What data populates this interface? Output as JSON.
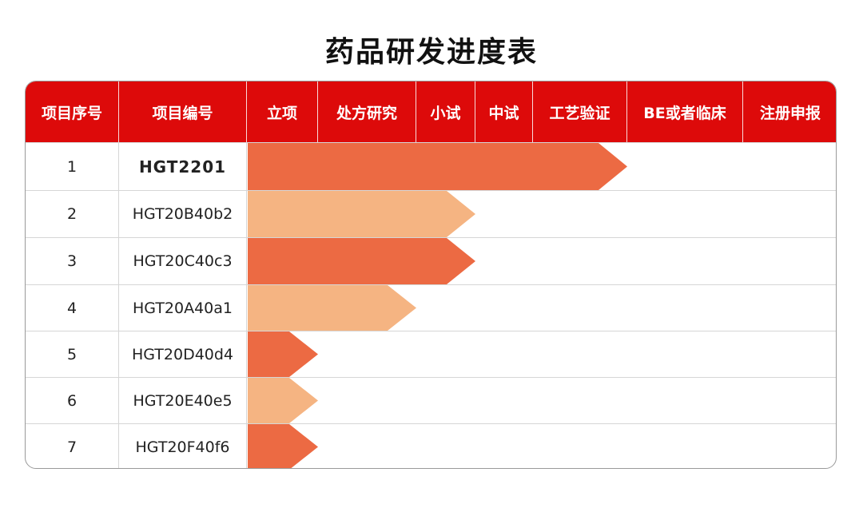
{
  "title": "药品研发进度表",
  "colors": {
    "header": "#dd0a0a",
    "dark_bar": "#ec6a43",
    "light_bar": "#f5b482"
  },
  "columns": [
    {
      "label": "项目序号"
    },
    {
      "label": "项目编号"
    },
    {
      "label": "立项"
    },
    {
      "label": "处方研究"
    },
    {
      "label": "小试"
    },
    {
      "label": "中试"
    },
    {
      "label": "工艺验证"
    },
    {
      "label": "BE或者临床"
    },
    {
      "label": "注册申报"
    }
  ],
  "rows": [
    {
      "index": "1",
      "code": "HGT2201"
    },
    {
      "index": "2",
      "code": "HGT20B40b2"
    },
    {
      "index": "3",
      "code": "HGT20C40c3"
    },
    {
      "index": "4",
      "code": "HGT20A40a1"
    },
    {
      "index": "5",
      "code": "HGT20D40d4"
    },
    {
      "index": "6",
      "code": "HGT20E40e5"
    },
    {
      "index": "7",
      "code": "HGT20F40f6"
    }
  ],
  "chart_data": {
    "type": "bar",
    "orientation": "horizontal",
    "stages": [
      "立项",
      "处方研究",
      "小试",
      "中试",
      "工艺验证",
      "BE或者临床",
      "注册申报"
    ],
    "categories": [
      "HGT2201",
      "HGT20B40b2",
      "HGT20C40c3",
      "HGT20A40a1",
      "HGT20D40d4",
      "HGT20E40e5",
      "HGT20F40f6"
    ],
    "values": [
      5,
      3,
      3,
      2,
      1,
      1,
      1
    ],
    "bar_colors": [
      "#ec6a43",
      "#f5b482",
      "#ec6a43",
      "#f5b482",
      "#ec6a43",
      "#f5b482",
      "#ec6a43"
    ]
  }
}
